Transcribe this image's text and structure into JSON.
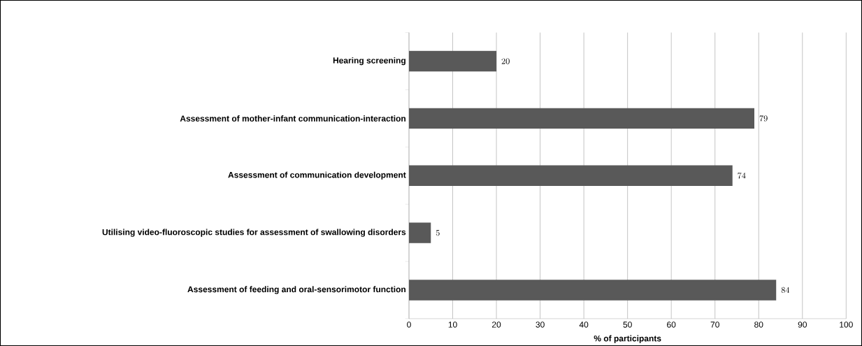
{
  "chart_data": {
    "type": "bar",
    "orientation": "horizontal",
    "categories": [
      "Hearing screening",
      "Assessment of mother-infant communication-interaction",
      "Assessment of communication development",
      "Utilising video-fluoroscopic studies for assessment of swallowing disorders",
      "Assessment of feeding and oral-sensorimotor function"
    ],
    "values": [
      20,
      79,
      74,
      5,
      84
    ],
    "color": "#595959",
    "xlabel": "% of participants",
    "xlim": [
      0,
      100
    ],
    "xticks": [
      0,
      10,
      20,
      30,
      40,
      50,
      60,
      70,
      80,
      90,
      100
    ],
    "grid": "x",
    "data_labels": true
  }
}
